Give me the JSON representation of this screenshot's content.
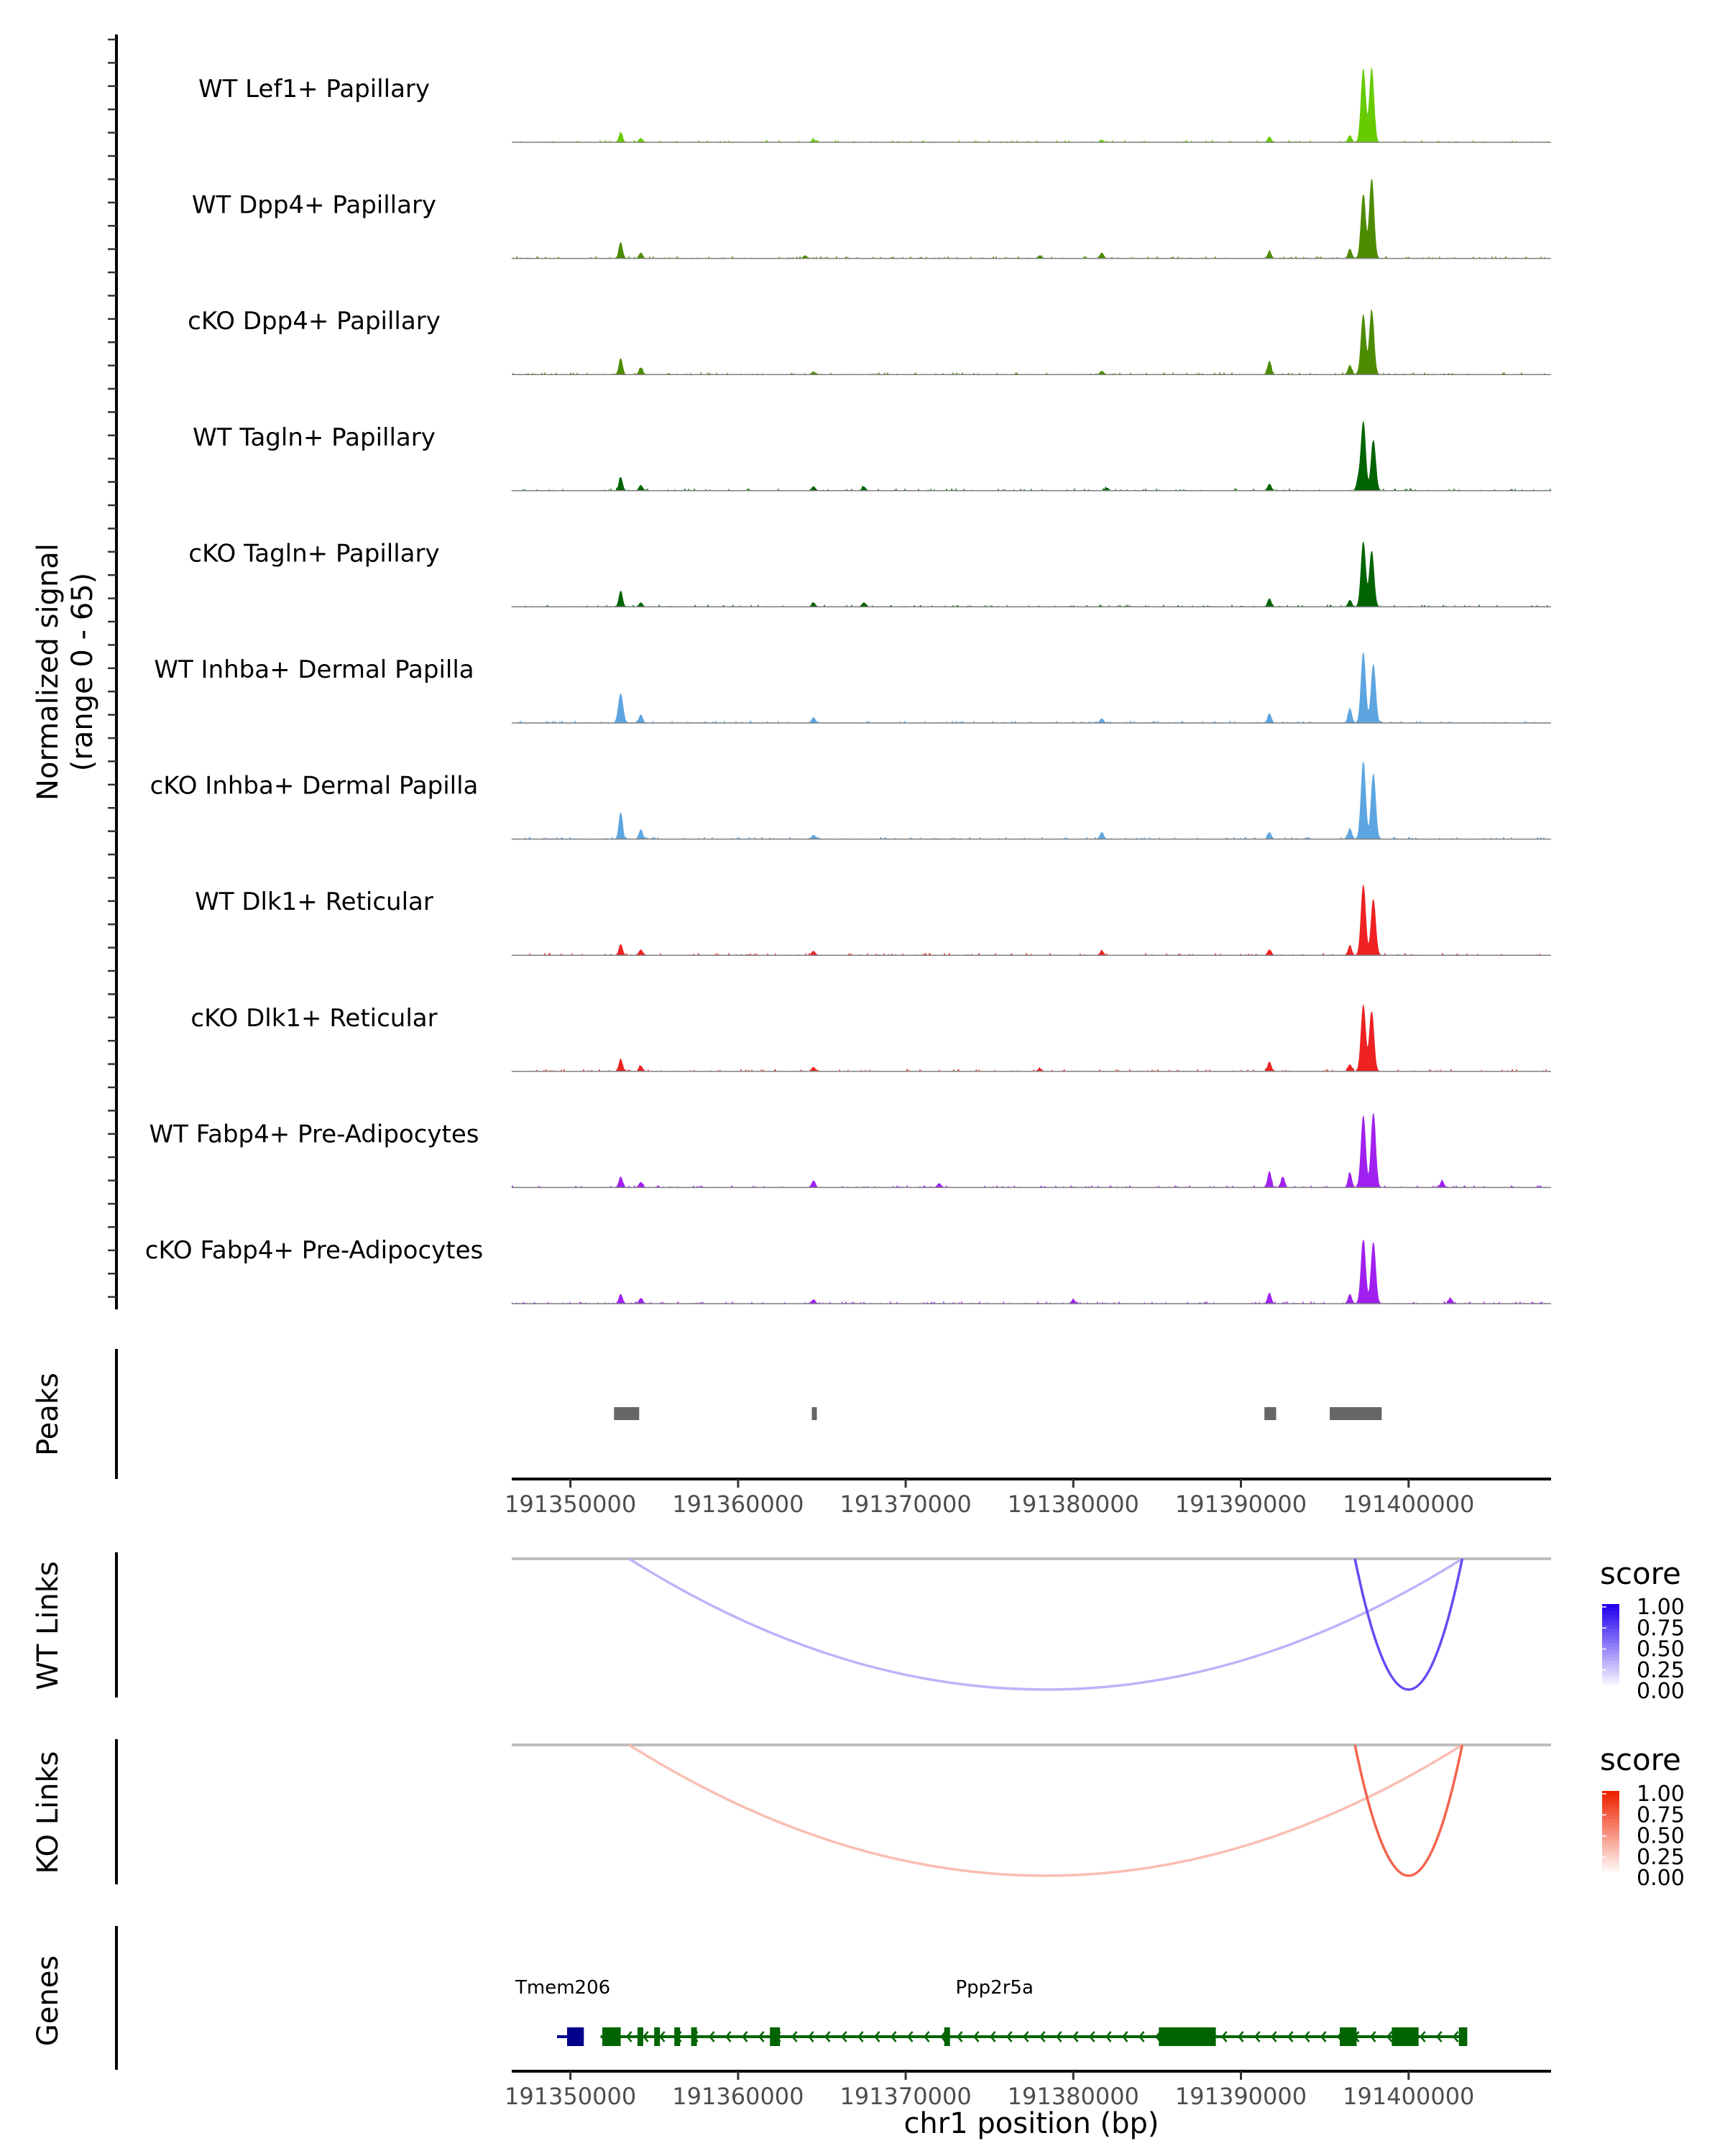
{
  "chart_data": {
    "type": "area",
    "region": {
      "chromosome": "chr1",
      "start": 191346500,
      "end": 191408500
    },
    "xlabel": "chr1 position (bp)",
    "x_ticks": [
      191350000,
      191360000,
      191370000,
      191380000,
      191390000,
      191400000
    ],
    "x_tick_labels": [
      "191350000",
      "191360000",
      "191370000",
      "191380000",
      "191390000",
      "191400000"
    ],
    "coverage": {
      "ylabel_line1": "Normalized signal",
      "ylabel_line2": "(range 0 - 65)",
      "ylim": [
        0,
        65
      ],
      "tracks": [
        {
          "name": "WT Lef1+ Papillary",
          "color": "#66CC00",
          "peaks": [
            [
              191353000,
              7
            ],
            [
              191354200,
              3
            ],
            [
              191364500,
              2
            ],
            [
              191381700,
              1.5
            ],
            [
              191391700,
              4
            ],
            [
              191396500,
              5
            ],
            [
              191397300,
              55
            ],
            [
              191397800,
              55
            ]
          ]
        },
        {
          "name": "WT Dpp4+ Papillary",
          "color": "#4D8C00",
          "peaks": [
            [
              191353000,
              12
            ],
            [
              191354200,
              4
            ],
            [
              191364000,
              2
            ],
            [
              191378000,
              2
            ],
            [
              191381700,
              4
            ],
            [
              191391700,
              5
            ],
            [
              191396500,
              7
            ],
            [
              191397300,
              48
            ],
            [
              191397800,
              60
            ]
          ]
        },
        {
          "name": "cKO Dpp4+ Papillary",
          "color": "#4D8C00",
          "peaks": [
            [
              191353000,
              12
            ],
            [
              191354200,
              5
            ],
            [
              191364500,
              2
            ],
            [
              191381700,
              2.5
            ],
            [
              191391700,
              10
            ],
            [
              191396500,
              7
            ],
            [
              191397300,
              45
            ],
            [
              191397800,
              48
            ]
          ]
        },
        {
          "name": "WT Tagln+ Papillary",
          "color": "#006400",
          "peaks": [
            [
              191353000,
              10
            ],
            [
              191354200,
              4
            ],
            [
              191364500,
              3
            ],
            [
              191367500,
              3
            ],
            [
              191382000,
              2
            ],
            [
              191391700,
              5
            ],
            [
              191397000,
              8
            ],
            [
              191397300,
              52
            ],
            [
              191397900,
              38
            ]
          ]
        },
        {
          "name": "cKO Tagln+ Papillary",
          "color": "#006400",
          "peaks": [
            [
              191353000,
              12
            ],
            [
              191354200,
              3
            ],
            [
              191364500,
              3
            ],
            [
              191367500,
              3
            ],
            [
              191391700,
              6
            ],
            [
              191396500,
              5
            ],
            [
              191397300,
              49
            ],
            [
              191397800,
              42
            ]
          ]
        },
        {
          "name": "WT Inhba+ Dermal Papilla",
          "color": "#5DA5E0",
          "peaks": [
            [
              191353000,
              22
            ],
            [
              191354200,
              6
            ],
            [
              191364500,
              4
            ],
            [
              191381700,
              3
            ],
            [
              191391700,
              7
            ],
            [
              191396500,
              11
            ],
            [
              191397300,
              53
            ],
            [
              191397900,
              44
            ]
          ]
        },
        {
          "name": "cKO Inhba+ Dermal Papilla",
          "color": "#5DA5E0",
          "peaks": [
            [
              191353000,
              20
            ],
            [
              191354200,
              7
            ],
            [
              191364500,
              3
            ],
            [
              191381700,
              5
            ],
            [
              191391700,
              5
            ],
            [
              191396500,
              8
            ],
            [
              191397300,
              58
            ],
            [
              191397900,
              49
            ]
          ]
        },
        {
          "name": "WT Dlk1+ Reticular",
          "color": "#EE2222",
          "peaks": [
            [
              191353000,
              8
            ],
            [
              191354200,
              4
            ],
            [
              191364500,
              3
            ],
            [
              191381700,
              3
            ],
            [
              191391700,
              4
            ],
            [
              191396500,
              7
            ],
            [
              191397300,
              53
            ],
            [
              191397900,
              42
            ]
          ]
        },
        {
          "name": "cKO Dlk1+ Reticular",
          "color": "#EE2222",
          "peaks": [
            [
              191353000,
              9
            ],
            [
              191354200,
              4
            ],
            [
              191364500,
              3
            ],
            [
              191378000,
              2
            ],
            [
              191391700,
              7
            ],
            [
              191396500,
              5
            ],
            [
              191397300,
              50
            ],
            [
              191397800,
              45
            ]
          ]
        },
        {
          "name": "WT Fabp4+ Pre-Adipocytes",
          "color": "#A020F0",
          "peaks": [
            [
              191353000,
              8
            ],
            [
              191354200,
              4
            ],
            [
              191364500,
              5
            ],
            [
              191372000,
              3
            ],
            [
              191391700,
              12
            ],
            [
              191392500,
              8
            ],
            [
              191396500,
              11
            ],
            [
              191397300,
              54
            ],
            [
              191397900,
              56
            ],
            [
              191402000,
              5
            ]
          ]
        },
        {
          "name": "cKO Fabp4+ Pre-Adipocytes",
          "color": "#A020F0",
          "peaks": [
            [
              191353000,
              7
            ],
            [
              191354200,
              4
            ],
            [
              191364500,
              3
            ],
            [
              191380000,
              3
            ],
            [
              191391700,
              8
            ],
            [
              191396500,
              7
            ],
            [
              191397300,
              48
            ],
            [
              191397900,
              46
            ],
            [
              191402500,
              4
            ]
          ]
        }
      ]
    },
    "peaks_track": {
      "label": "Peaks",
      "color": "#666666",
      "regions": [
        [
          191352600,
          191354100
        ],
        [
          191364400,
          191364700
        ],
        [
          191391400,
          191392100
        ],
        [
          191395300,
          191398400
        ]
      ]
    },
    "links": [
      {
        "label": "WT Links",
        "legend_title": "score",
        "legend_ticks": [
          "1.00",
          "0.75",
          "0.50",
          "0.25",
          "0.00"
        ],
        "color_high": "#2200EE",
        "color_low": "#FFFFFF",
        "arcs": [
          {
            "start": 191353500,
            "end": 191403200,
            "score": 0.3
          },
          {
            "start": 191396800,
            "end": 191403200,
            "score": 0.7
          }
        ]
      },
      {
        "label": "KO Links",
        "legend_title": "score",
        "legend_ticks": [
          "1.00",
          "0.75",
          "0.50",
          "0.25",
          "0.00"
        ],
        "color_high": "#EE2200",
        "color_low": "#FFFFFF",
        "arcs": [
          {
            "start": 191353500,
            "end": 191403200,
            "score": 0.3
          },
          {
            "start": 191396800,
            "end": 191403200,
            "score": 0.7
          }
        ]
      }
    ],
    "genes": {
      "label": "Genes",
      "items": [
        {
          "name": "Tmem206",
          "color": "#00008B",
          "start": 191349200,
          "end": 191350800,
          "label_pos": 191349200,
          "exons": [
            [
              191349800,
              191350800
            ]
          ]
        },
        {
          "name": "Ppp2r5a",
          "color": "#006400",
          "start": 191351800,
          "end": 191403500,
          "label_pos": 191375300,
          "exons": [
            [
              191351900,
              191353000
            ],
            [
              191354000,
              191354300
            ],
            [
              191355000,
              191355200
            ],
            [
              191356200,
              191356400
            ],
            [
              191357200,
              191357400
            ],
            [
              191361900,
              191362500
            ],
            [
              191372300,
              191372500
            ],
            [
              191385100,
              191388500
            ],
            [
              191395900,
              191396900
            ],
            [
              191399000,
              191400600
            ],
            [
              191403000,
              191403500
            ]
          ]
        }
      ]
    }
  }
}
